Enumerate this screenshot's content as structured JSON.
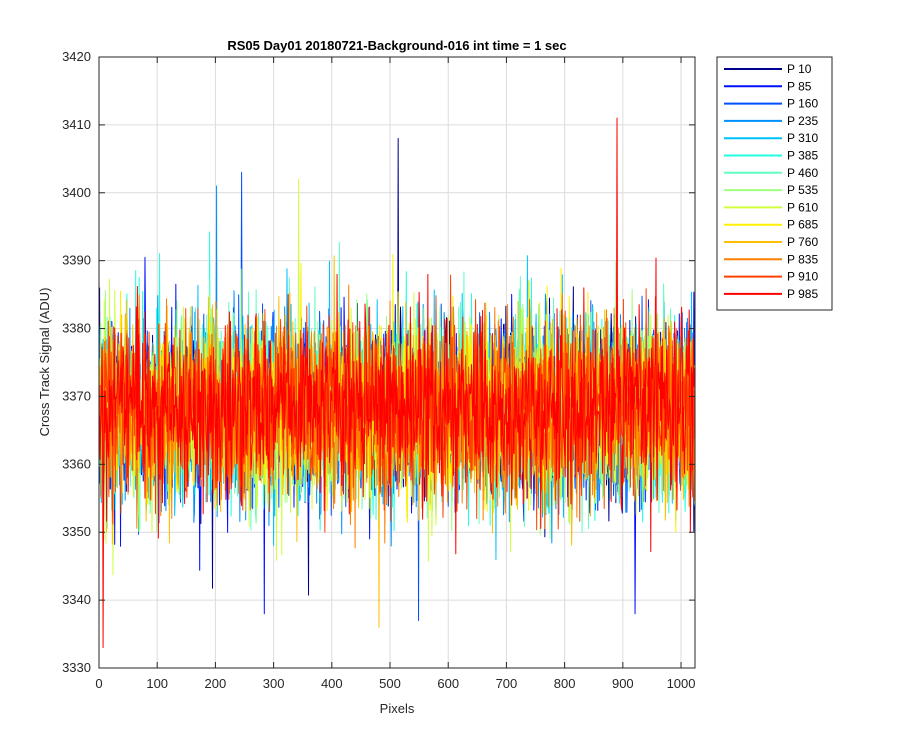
{
  "chart_data": {
    "type": "line",
    "title": "RS05 Day01 20180721-Background-016 int time = 1 sec",
    "xlabel": "Pixels",
    "ylabel": "Cross Track Signal (ADU)",
    "xlim": [
      0,
      1024
    ],
    "ylim": [
      3330,
      3420
    ],
    "xticks": [
      0,
      100,
      200,
      300,
      400,
      500,
      600,
      700,
      800,
      900,
      1000
    ],
    "yticks": [
      3330,
      3340,
      3350,
      3360,
      3370,
      3380,
      3390,
      3400,
      3410,
      3420
    ],
    "grid": true,
    "legend_position": "outside-right-top",
    "noise": {
      "mean": 3368,
      "sigma": 6.5,
      "points_per_series": 1024
    },
    "series": [
      {
        "name": "P 10",
        "color": "#00008f"
      },
      {
        "name": "P 85",
        "color": "#0010ff"
      },
      {
        "name": "P 160",
        "color": "#0050ff"
      },
      {
        "name": "P 235",
        "color": "#0090ff"
      },
      {
        "name": "P 310",
        "color": "#00c0ff"
      },
      {
        "name": "P 385",
        "color": "#20ffdf"
      },
      {
        "name": "P 460",
        "color": "#60ffbf"
      },
      {
        "name": "P 535",
        "color": "#9fff7f"
      },
      {
        "name": "P 610",
        "color": "#cfff3f"
      },
      {
        "name": "P 685",
        "color": "#ffef00"
      },
      {
        "name": "P 760",
        "color": "#ffbf00"
      },
      {
        "name": "P 835",
        "color": "#ff7f00"
      },
      {
        "name": "P 910",
        "color": "#ff4000"
      },
      {
        "name": "P 985",
        "color": "#ff0000"
      }
    ],
    "spikes": [
      {
        "series": "P 10",
        "x": 513,
        "y": 3408
      },
      {
        "series": "P 160",
        "x": 244,
        "y": 3403
      },
      {
        "series": "P 235",
        "x": 201,
        "y": 3401
      },
      {
        "series": "P 610",
        "x": 342,
        "y": 3402
      },
      {
        "series": "P 760",
        "x": 480,
        "y": 3336
      },
      {
        "series": "P 985",
        "x": 889,
        "y": 3411
      },
      {
        "series": "P 985",
        "x": 6,
        "y": 3333
      },
      {
        "series": "P 160",
        "x": 548,
        "y": 3337
      },
      {
        "series": "P 85",
        "x": 283,
        "y": 3338
      },
      {
        "series": "P 85",
        "x": 920,
        "y": 3338
      }
    ]
  }
}
